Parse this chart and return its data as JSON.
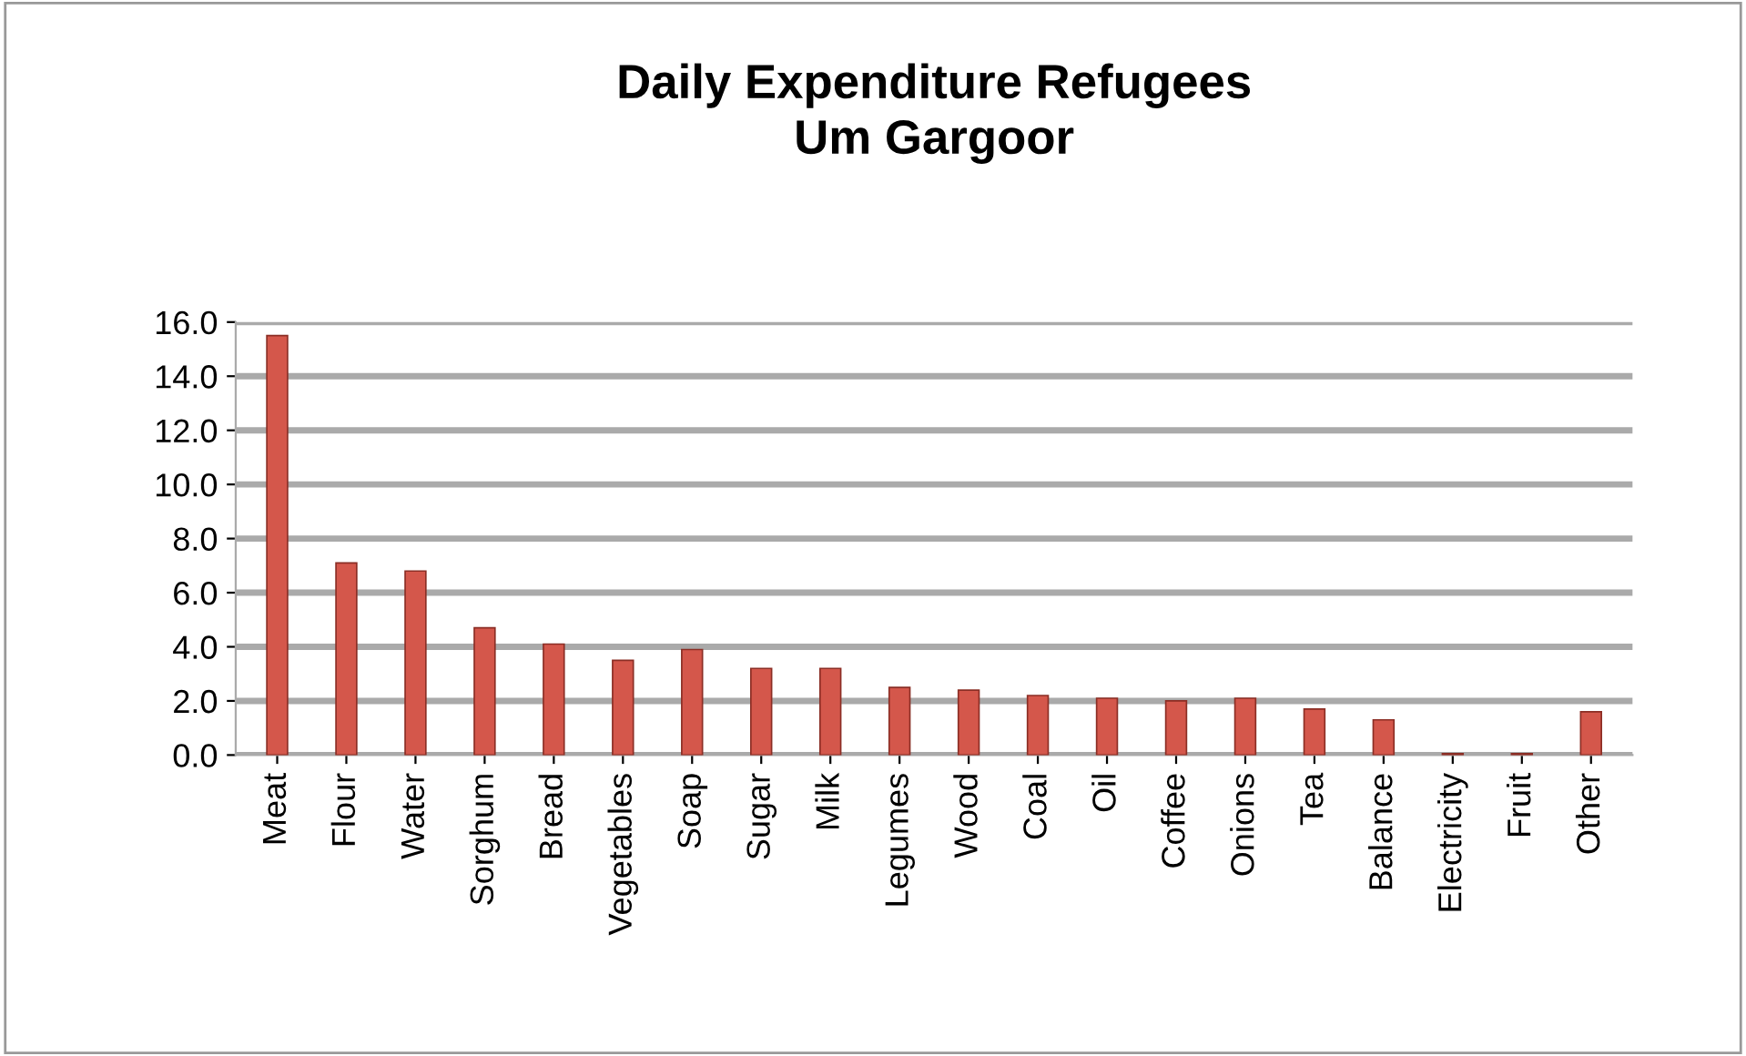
{
  "chart_data": {
    "type": "bar",
    "title": "Daily Expenditure Refugees\nUm Gargoor",
    "categories": [
      "Meat",
      "Flour",
      "Water",
      "Sorghum",
      "Bread",
      "Vegetables",
      "Soap",
      "Sugar",
      "Milk",
      "Legumes",
      "Wood",
      "Coal",
      "Oil",
      "Coffee",
      "Onions",
      "Tea",
      "Balance",
      "Electricity",
      "Fruit",
      "Other"
    ],
    "values": [
      15.5,
      7.1,
      6.8,
      4.7,
      4.1,
      3.5,
      3.9,
      3.2,
      3.2,
      2.5,
      2.4,
      2.2,
      2.1,
      2.0,
      2.1,
      1.7,
      1.3,
      0.05,
      0.05,
      1.6
    ],
    "color": "#d4574b",
    "ylim": [
      0,
      16
    ],
    "yticks": [
      {
        "value": 0,
        "label": "0.0"
      },
      {
        "value": 2,
        "label": "2.0"
      },
      {
        "value": 4,
        "label": "4.0"
      },
      {
        "value": 6,
        "label": "6.0"
      },
      {
        "value": 8,
        "label": "8.0"
      },
      {
        "value": 10,
        "label": "10.0"
      },
      {
        "value": 12,
        "label": "12.0"
      },
      {
        "value": 14,
        "label": "14.0"
      },
      {
        "value": 16,
        "label": "16.0"
      }
    ],
    "grid": "y",
    "legend": false
  }
}
